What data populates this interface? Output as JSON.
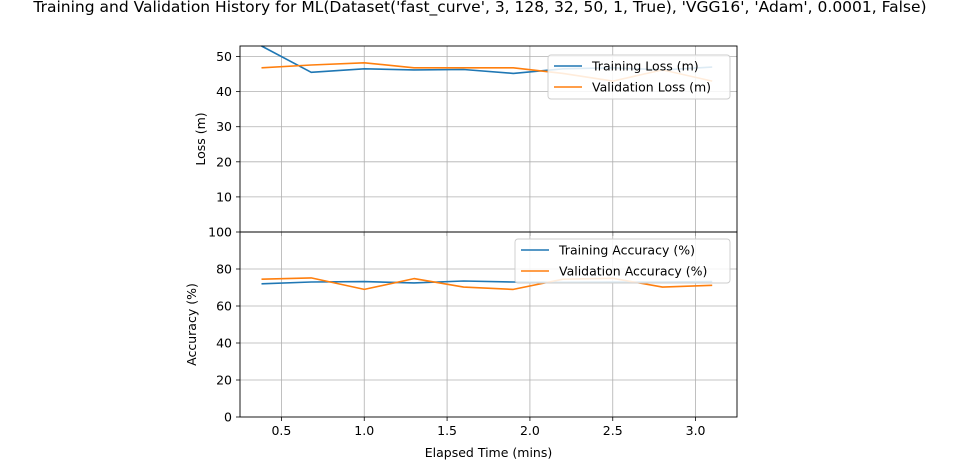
{
  "title": "Training and Validation History for ML(Dataset('fast_curve', 3, 128, 32, 50, 1, True), 'VGG16', 'Adam', 0.0001, False)",
  "colors": {
    "training": "#1f77b4",
    "validation": "#ff7f0e",
    "grid": "#b0b0b0"
  },
  "chart_data": [
    {
      "type": "line",
      "ylabel": "Loss (m)",
      "xlabel": "",
      "xlim": [
        0.25,
        3.25
      ],
      "ylim": [
        0,
        53
      ],
      "grid": true,
      "legend_position": "top-right",
      "xticks": [
        0.5,
        1.0,
        1.5,
        2.0,
        2.5,
        3.0
      ],
      "xtick_labels": [],
      "yticks": [
        10,
        20,
        30,
        40,
        50
      ],
      "ytick_labels": [
        "10",
        "20",
        "30",
        "40",
        "50"
      ],
      "series": [
        {
          "name": "Training Loss (m)",
          "color": "training",
          "x": [
            0.38,
            0.68,
            1.0,
            1.3,
            1.6,
            1.9,
            2.2,
            2.5,
            2.8,
            3.1
          ],
          "y": [
            53,
            45.5,
            46.5,
            46.2,
            46.3,
            45.2,
            46.5,
            46.8,
            46.2,
            47.0
          ]
        },
        {
          "name": "Validation Loss (m)",
          "color": "validation",
          "x": [
            0.38,
            0.68,
            1.0,
            1.3,
            1.6,
            1.9,
            2.2,
            2.5,
            2.8,
            3.1
          ],
          "y": [
            46.8,
            47.6,
            48.2,
            46.8,
            46.8,
            46.8,
            45.2,
            43.0,
            46.2,
            43.0
          ]
        }
      ]
    },
    {
      "type": "line",
      "ylabel": "Accuracy (%)",
      "xlabel": "Elapsed Time (mins)",
      "xlim": [
        0.25,
        3.25
      ],
      "ylim": [
        0,
        100
      ],
      "grid": true,
      "legend_position": "top-right",
      "xticks": [
        0.5,
        1.0,
        1.5,
        2.0,
        2.5,
        3.0
      ],
      "xtick_labels": [
        "0.5",
        "1.0",
        "1.5",
        "2.0",
        "2.5",
        "3.0"
      ],
      "yticks": [
        0,
        20,
        40,
        60,
        80,
        100
      ],
      "ytick_labels": [
        "0",
        "20",
        "40",
        "60",
        "80",
        "100"
      ],
      "series": [
        {
          "name": "Training Accuracy (%)",
          "color": "training",
          "x": [
            0.38,
            0.68,
            1.0,
            1.3,
            1.6,
            1.9,
            2.2,
            2.5,
            2.8,
            3.1
          ],
          "y": [
            72.0,
            73.0,
            73.2,
            72.5,
            73.5,
            73.0,
            72.8,
            73.0,
            73.0,
            73.2
          ]
        },
        {
          "name": "Validation Accuracy (%)",
          "color": "validation",
          "x": [
            0.38,
            0.68,
            1.0,
            1.3,
            1.6,
            1.9,
            2.2,
            2.5,
            2.8,
            3.1
          ],
          "y": [
            74.5,
            75.2,
            69.0,
            74.8,
            70.2,
            69.0,
            74.5,
            75.0,
            70.2,
            71.2
          ]
        }
      ]
    }
  ]
}
